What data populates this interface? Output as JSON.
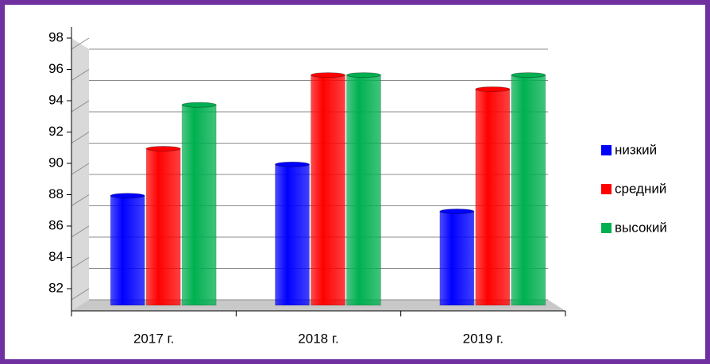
{
  "chart_data": {
    "type": "bar",
    "categories": [
      "2017 г.",
      "2018 г.",
      "2019 г."
    ],
    "series": [
      {
        "name": "низкий",
        "color": "#0000ff",
        "values": [
          89,
          91,
          88
        ]
      },
      {
        "name": "средний",
        "color": "#ff0000",
        "values": [
          92,
          96.7,
          95.8
        ]
      },
      {
        "name": "высокий",
        "color": "#00b050",
        "values": [
          94.8,
          96.7,
          96.7
        ]
      }
    ],
    "ylim": [
      82,
      98
    ],
    "yticks": [
      82,
      84,
      86,
      88,
      90,
      92,
      94,
      96,
      98
    ],
    "grid": true,
    "legend": "right"
  }
}
